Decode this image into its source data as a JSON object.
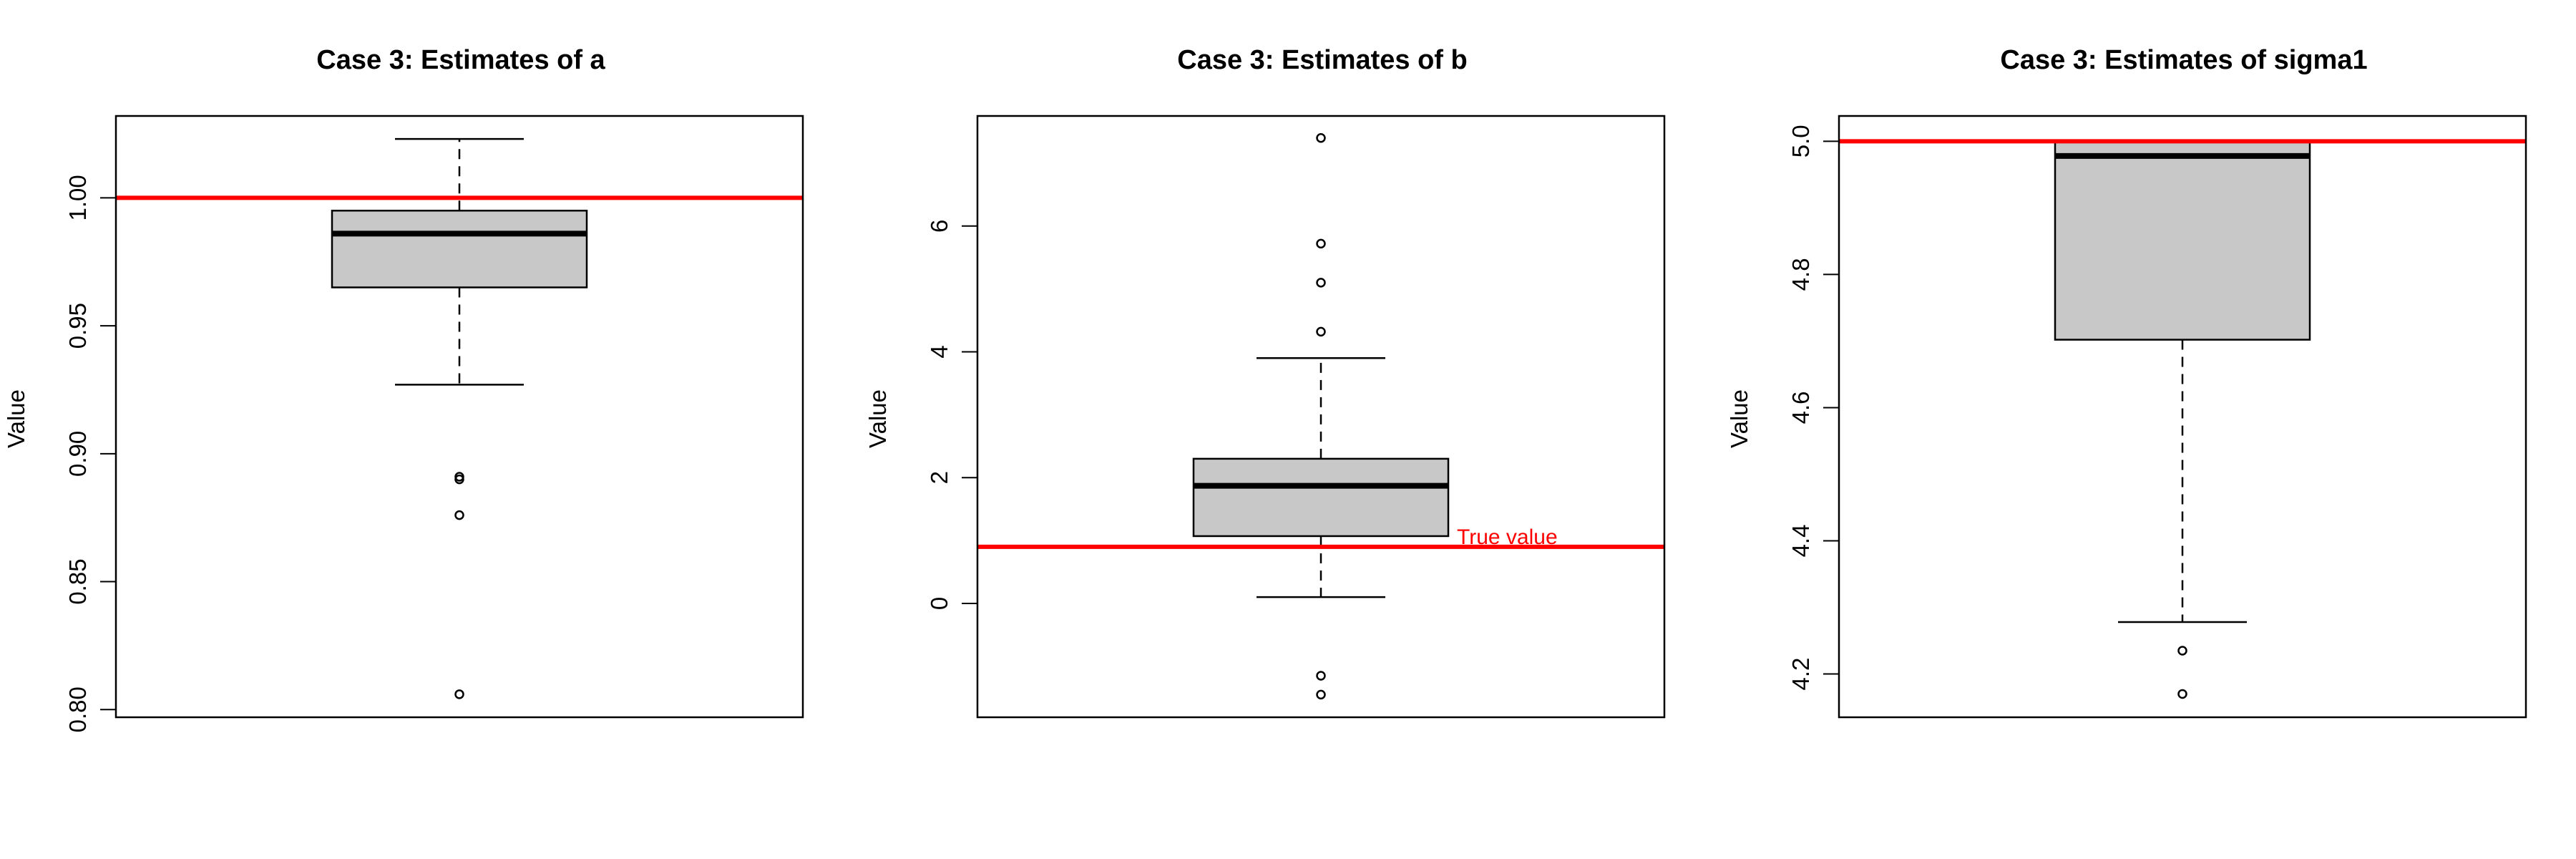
{
  "colors": {
    "reference_line": "#ff0000",
    "box_fill": "#c8c8c8",
    "ink": "#000000"
  },
  "chart_data": [
    {
      "type": "boxplot",
      "title": "Case 3: Estimates of a",
      "ylabel": "Value",
      "ylim": [
        0.797,
        1.032
      ],
      "yticks": [
        0.8,
        0.85,
        0.9,
        0.95,
        1.0
      ],
      "ytick_labels": [
        "0.80",
        "0.85",
        "0.90",
        "0.95",
        "1.00"
      ],
      "box": {
        "whisker_low": 0.927,
        "q1": 0.965,
        "median": 0.986,
        "q3": 0.995,
        "whisker_high": 1.023
      },
      "outliers": [
        0.891,
        0.89,
        0.876,
        0.806
      ],
      "reference_line": {
        "value": 1.0,
        "label": ""
      },
      "grid": false
    },
    {
      "type": "boxplot",
      "title": "Case 3: Estimates of b",
      "ylabel": "Value",
      "ylim": [
        -1.81,
        7.75
      ],
      "yticks": [
        0,
        2,
        4,
        6
      ],
      "ytick_labels": [
        "0",
        "2",
        "4",
        "6"
      ],
      "box": {
        "whisker_low": 0.1,
        "q1": 1.07,
        "median": 1.87,
        "q3": 2.3,
        "whisker_high": 3.9
      },
      "outliers": [
        7.4,
        5.72,
        5.1,
        4.32,
        -1.15,
        -1.45
      ],
      "reference_line": {
        "value": 0.9,
        "label": "True value"
      },
      "grid": false
    },
    {
      "type": "boxplot",
      "title": "Case 3: Estimates of sigma1",
      "ylabel": "Value",
      "ylim": [
        4.135,
        5.038
      ],
      "yticks": [
        4.2,
        4.4,
        4.6,
        4.8,
        5.0
      ],
      "ytick_labels": [
        "4.2",
        "4.4",
        "4.6",
        "4.8",
        "5.0"
      ],
      "box": {
        "whisker_low": 4.278,
        "q1": 4.702,
        "median": 4.978,
        "q3": 5.0,
        "whisker_high": 5.0
      },
      "outliers": [
        4.235,
        4.17
      ],
      "reference_line": {
        "value": 5.0,
        "label": ""
      },
      "grid": false
    }
  ]
}
